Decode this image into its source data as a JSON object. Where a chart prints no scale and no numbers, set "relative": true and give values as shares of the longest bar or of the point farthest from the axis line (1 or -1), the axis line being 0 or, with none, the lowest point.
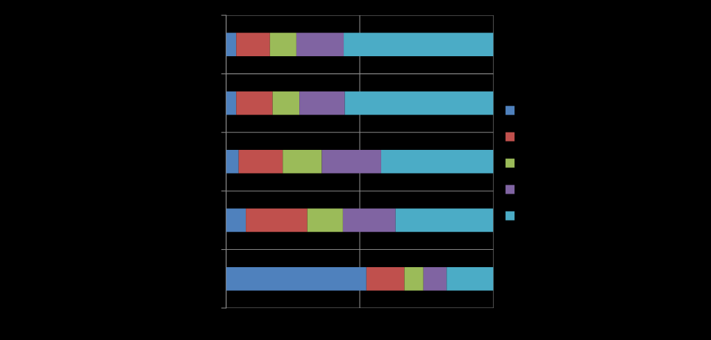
{
  "chart_data": {
    "type": "bar",
    "orientation": "horizontal",
    "stacked": true,
    "relative": true,
    "categories": [
      null,
      null,
      null,
      null,
      null
    ],
    "series": [
      {
        "color": "#4f81bd",
        "values": [
          0.038,
          0.038,
          0.047,
          0.074,
          0.525
        ]
      },
      {
        "color": "#c0504d",
        "values": [
          0.126,
          0.136,
          0.165,
          0.23,
          0.142
        ]
      },
      {
        "color": "#9bbb59",
        "values": [
          0.099,
          0.1,
          0.146,
          0.133,
          0.071
        ]
      },
      {
        "color": "#8064a2",
        "values": [
          0.177,
          0.17,
          0.222,
          0.197,
          0.087
        ]
      },
      {
        "color": "#4bacc6",
        "values": [
          0.56,
          0.556,
          0.42,
          0.365,
          0.175
        ]
      }
    ],
    "grid": true
  }
}
